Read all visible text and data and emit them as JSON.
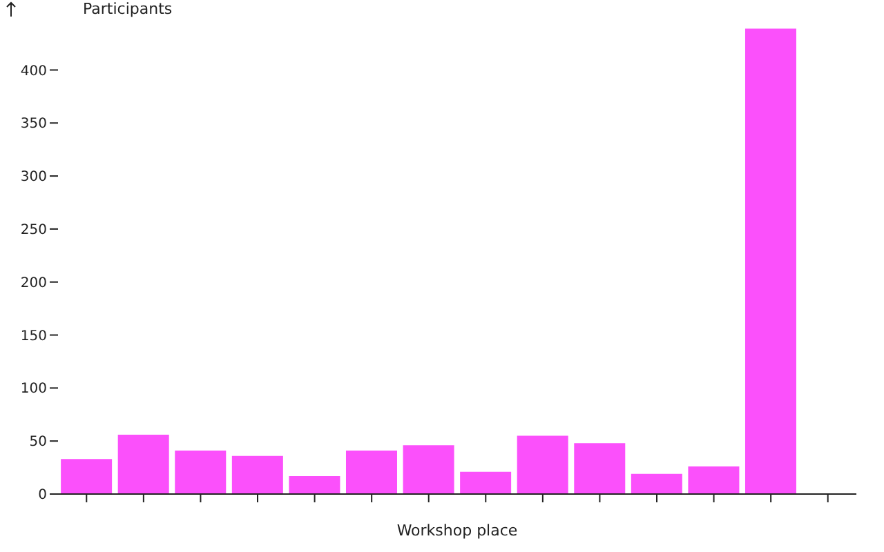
{
  "chart_data": {
    "type": "bar",
    "xlabel": "Workshop place",
    "ylabel": "Participants",
    "categories": [
      null,
      null,
      null,
      null,
      null,
      null,
      null,
      null,
      null,
      null,
      null,
      null,
      null,
      null
    ],
    "values": [
      33,
      56,
      41,
      36,
      17,
      41,
      46,
      21,
      55,
      48,
      19,
      26,
      439,
      0
    ],
    "color": "#fb50fb",
    "ylim": [
      0,
      440
    ],
    "yticks": [
      0,
      50,
      100,
      150,
      200,
      250,
      300,
      350,
      400
    ],
    "grid": false
  }
}
